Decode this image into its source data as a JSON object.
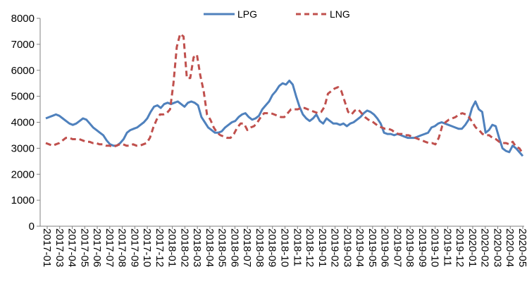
{
  "colors": {
    "lpg": "#4f81bd",
    "lng": "#c0504d",
    "axis": "#808080",
    "text": "#000000"
  },
  "chart_data": {
    "type": "line",
    "title": "",
    "xlabel": "",
    "ylabel": "",
    "ylim": [
      0,
      8000
    ],
    "yticks": [
      0,
      1000,
      2000,
      3000,
      4000,
      5000,
      6000,
      7000,
      8000
    ],
    "xtick_labels": [
      "2017-01",
      "2017-03",
      "2017-04",
      "2017-05",
      "2017-06",
      "2017-07",
      "2017-08",
      "2017-09",
      "2017-10",
      "2017-12",
      "2018-01",
      "2018-02",
      "2018-03",
      "2018-04",
      "2018-05",
      "2018-06",
      "2018-07",
      "2018-08",
      "2018-09",
      "2018-10",
      "2018-11",
      "2018-12",
      "2019-01",
      "2019-02",
      "2019-03",
      "2019-04",
      "2019-05",
      "2019-06",
      "2019-07",
      "2019-08",
      "2019-09",
      "2019-10",
      "2019-11",
      "2019-12",
      "2020-01",
      "2020-02",
      "2020-03",
      "2020-04",
      "2020-05"
    ],
    "grid": false,
    "legend": "top-center",
    "series": [
      {
        "name": "LPG",
        "line_style": "solid",
        "values": [
          4150,
          4200,
          4250,
          4300,
          4250,
          4150,
          4050,
          3950,
          3900,
          3950,
          4050,
          4150,
          4100,
          3950,
          3800,
          3700,
          3600,
          3500,
          3300,
          3150,
          3100,
          3100,
          3200,
          3350,
          3600,
          3700,
          3750,
          3800,
          3900,
          4000,
          4150,
          4400,
          4600,
          4650,
          4550,
          4700,
          4750,
          4700,
          4750,
          4800,
          4700,
          4600,
          4750,
          4800,
          4750,
          4650,
          4200,
          4000,
          3800,
          3700,
          3600,
          3600,
          3650,
          3800,
          3900,
          4000,
          4050,
          4200,
          4300,
          4350,
          4200,
          4100,
          4150,
          4250,
          4500,
          4650,
          4800,
          5050,
          5200,
          5400,
          5500,
          5450,
          5600,
          5450,
          5000,
          4600,
          4300,
          4150,
          4050,
          4150,
          4300,
          4050,
          3950,
          4150,
          4050,
          3950,
          3950,
          3900,
          3950,
          3850,
          3950,
          4000,
          4100,
          4200,
          4350,
          4450,
          4400,
          4300,
          4150,
          3950,
          3600,
          3550,
          3550,
          3500,
          3550,
          3500,
          3450,
          3400,
          3400,
          3400,
          3450,
          3500,
          3550,
          3600,
          3800,
          3850,
          3950,
          4000,
          3950,
          3900,
          3850,
          3800,
          3750,
          3750,
          3900,
          4100,
          4550,
          4800,
          4500,
          4400,
          3600,
          3700,
          3900,
          3850,
          3400,
          3000,
          2900,
          2850,
          3100,
          3000,
          2850,
          2700
        ]
      },
      {
        "name": "LNG",
        "line_style": "dashed",
        "values": [
          3200,
          3150,
          3100,
          3150,
          3200,
          3300,
          3400,
          3400,
          3350,
          3350,
          3350,
          3300,
          3250,
          3250,
          3200,
          3200,
          3150,
          3150,
          3100,
          3100,
          3050,
          3100,
          3150,
          3150,
          3100,
          3100,
          3150,
          3100,
          3100,
          3150,
          3200,
          3400,
          3800,
          4100,
          4300,
          4300,
          4350,
          4500,
          5500,
          6900,
          7400,
          7300,
          5700,
          5700,
          6500,
          6600,
          5800,
          5200,
          4300,
          4100,
          3800,
          3600,
          3500,
          3450,
          3400,
          3400,
          3550,
          3800,
          3950,
          3950,
          3700,
          3800,
          3850,
          4000,
          4200,
          4350,
          4350,
          4350,
          4300,
          4250,
          4200,
          4200,
          4350,
          4500,
          4500,
          4500,
          4550,
          4550,
          4500,
          4450,
          4400,
          4350,
          4400,
          4600,
          5100,
          5200,
          5300,
          5350,
          5200,
          4800,
          4400,
          4300,
          4450,
          4500,
          4350,
          4200,
          4100,
          4050,
          3950,
          3850,
          3800,
          3750,
          3750,
          3700,
          3600,
          3550,
          3550,
          3500,
          3500,
          3450,
          3400,
          3350,
          3300,
          3250,
          3200,
          3200,
          3150,
          3400,
          3850,
          4000,
          4100,
          4150,
          4200,
          4300,
          4350,
          4300,
          4200,
          4000,
          3800,
          3700,
          3550,
          3500,
          3500,
          3400,
          3350,
          3250,
          3200,
          3200,
          3150,
          3250,
          3050,
          3000,
          2800
        ]
      }
    ]
  }
}
